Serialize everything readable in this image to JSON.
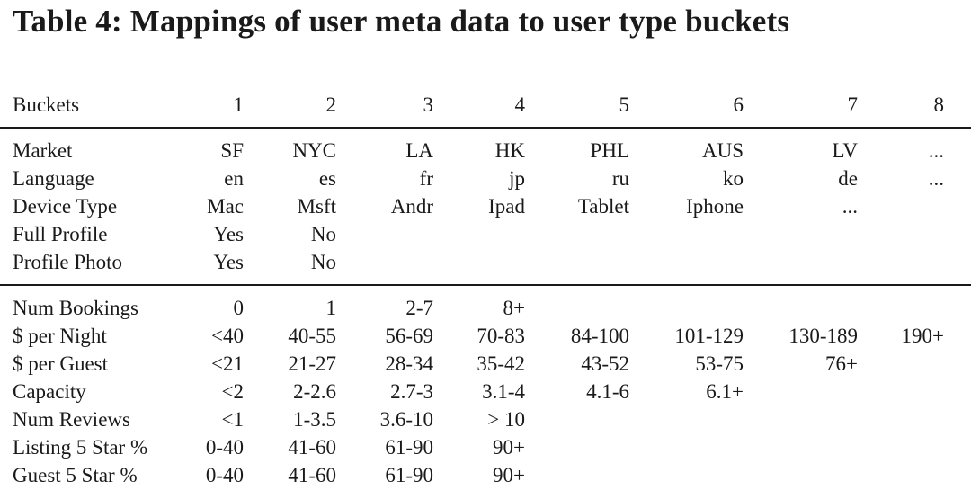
{
  "title": "Table 4: Mappings of user meta data to user type buckets",
  "header": {
    "label": "Buckets",
    "cols": [
      "1",
      "2",
      "3",
      "4",
      "5",
      "6",
      "7",
      "8"
    ]
  },
  "group1": [
    {
      "label": "Market",
      "cells": [
        "SF",
        "NYC",
        "LA",
        "HK",
        "PHL",
        "AUS",
        "LV",
        "..."
      ]
    },
    {
      "label": "Language",
      "cells": [
        "en",
        "es",
        "fr",
        "jp",
        "ru",
        "ko",
        "de",
        "..."
      ]
    },
    {
      "label": "Device Type",
      "cells": [
        "Mac",
        "Msft",
        "Andr",
        "Ipad",
        "Tablet",
        "Iphone",
        "...",
        ""
      ]
    },
    {
      "label": "Full Profile",
      "cells": [
        "Yes",
        "No",
        "",
        "",
        "",
        "",
        "",
        ""
      ]
    },
    {
      "label": "Profile Photo",
      "cells": [
        "Yes",
        "No",
        "",
        "",
        "",
        "",
        "",
        ""
      ]
    }
  ],
  "group2": [
    {
      "label": "Num Bookings",
      "cells": [
        "0",
        "1",
        "2-7",
        "8+",
        "",
        "",
        "",
        ""
      ]
    },
    {
      "label": "$ per Night",
      "cells": [
        "<40",
        "40-55",
        "56-69",
        "70-83",
        "84-100",
        "101-129",
        "130-189",
        "190+"
      ]
    },
    {
      "label": "$ per Guest",
      "cells": [
        "<21",
        "21-27",
        "28-34",
        "35-42",
        "43-52",
        "53-75",
        "76+",
        ""
      ]
    },
    {
      "label": "Capacity",
      "cells": [
        "<2",
        "2-2.6",
        "2.7-3",
        "3.1-4",
        "4.1-6",
        "6.1+",
        "",
        ""
      ]
    },
    {
      "label": "Num Reviews",
      "cells": [
        "<1",
        "1-3.5",
        "3.6-10",
        "> 10",
        "",
        "",
        "",
        ""
      ]
    },
    {
      "label": "Listing 5 Star %",
      "cells": [
        "0-40",
        "41-60",
        "61-90",
        "90+",
        "",
        "",
        "",
        ""
      ]
    },
    {
      "label": "Guest 5 Star %",
      "cells": [
        "0-40",
        "41-60",
        "61-90",
        "90+",
        "",
        "",
        "",
        ""
      ]
    }
  ]
}
